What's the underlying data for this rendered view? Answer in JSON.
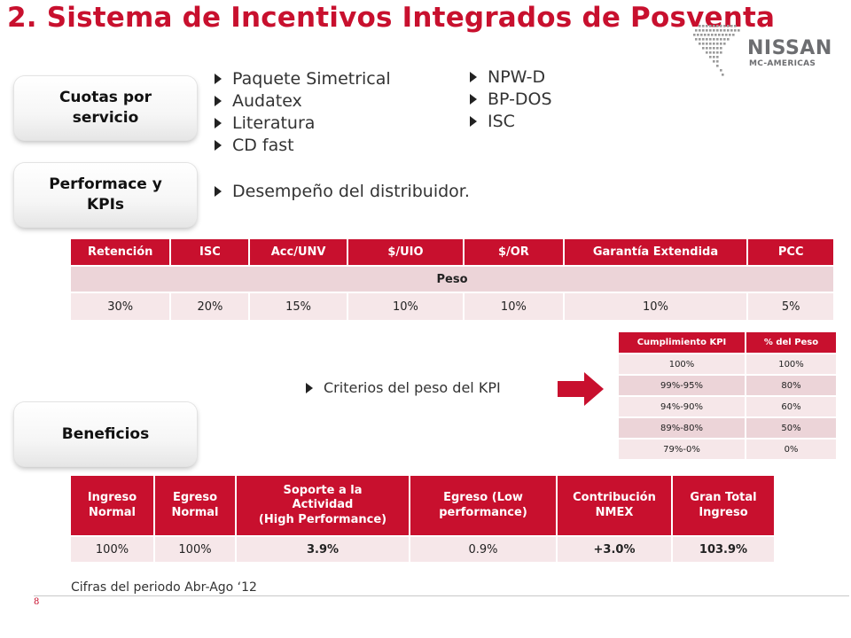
{
  "title": "2. Sistema de Incentivos Integrados de Posventa",
  "logo": {
    "name": "NISSAN",
    "sub": "MC-AMERICAS"
  },
  "sections": {
    "cuotas": [
      "Cuotas por",
      "servicio"
    ],
    "performance": [
      "Performace  y",
      "KPIs"
    ],
    "beneficios": [
      "Beneficios"
    ]
  },
  "cuotas_bullets_left": [
    "Paquete Simetrical",
    " Audatex",
    " Literatura",
    " CD fast"
  ],
  "cuotas_bullets_right": [
    "NPW-D",
    "BP-DOS",
    "ISC"
  ],
  "performance_bullet": "Desempeño del distribuidor.",
  "kpi_table": {
    "headers": [
      "Retención",
      "ISC",
      "Acc/UNV",
      "$/UIO",
      "$/OR",
      "Garantía Extendida",
      "PCC"
    ],
    "peso_label": "Peso",
    "values": [
      "30%",
      "20%",
      "15%",
      "10%",
      "10%",
      "10%",
      "5%"
    ]
  },
  "criterio_bullet": "Criterios del peso del KPI",
  "criterio_table": {
    "headers": [
      "Cumplimiento KPI",
      "% del Peso"
    ],
    "rows": [
      [
        "100%",
        "100%"
      ],
      [
        "99%-95%",
        "80%"
      ],
      [
        "94%-90%",
        "60%"
      ],
      [
        "89%-80%",
        "50%"
      ],
      [
        "79%-0%",
        "0%"
      ]
    ]
  },
  "benefits_table": {
    "headers": [
      [
        "Ingreso",
        "Normal"
      ],
      [
        "Egreso",
        "Normal"
      ],
      [
        "Soporte a la",
        "Actividad",
        "(High Performance)"
      ],
      [
        "Egreso  (Low",
        "performance)"
      ],
      [
        "Contribución",
        "NMEX"
      ],
      [
        "Gran Total",
        "Ingreso"
      ]
    ],
    "values": [
      "100%",
      "100%",
      "3.9%",
      "0.9%",
      "+3.0%",
      "103.9%"
    ]
  },
  "note": "Cifras del periodo Abr-Ago ‘12",
  "page_number": "8",
  "colors": {
    "accent": "#c8102e",
    "row_light": "#f6e7e9",
    "row_mid": "#ecd4d8",
    "logo_gray": "#6d6e71"
  }
}
